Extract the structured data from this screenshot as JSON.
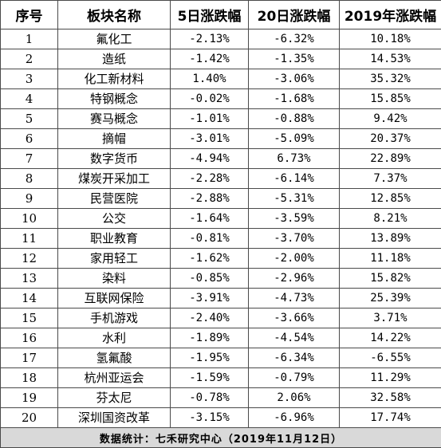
{
  "headers": [
    "序号",
    "板块名称",
    "5日涨跌幅",
    "20日涨跌幅",
    "2019年涨跌幅"
  ],
  "rows": [
    [
      "1",
      "氟化工",
      "-2.13%",
      "-6.32%",
      "10.18%"
    ],
    [
      "2",
      "造纸",
      "-1.42%",
      "-1.35%",
      "14.53%"
    ],
    [
      "3",
      "化工新材料",
      "1.40%",
      "-3.06%",
      "35.32%"
    ],
    [
      "4",
      "特钢概念",
      "-0.02%",
      "-1.68%",
      "15.85%"
    ],
    [
      "5",
      "赛马概念",
      "-1.01%",
      "-0.88%",
      "9.42%"
    ],
    [
      "6",
      "摘帽",
      "-3.01%",
      "-5.09%",
      "20.37%"
    ],
    [
      "7",
      "数字货币",
      "-4.94%",
      "6.73%",
      "22.89%"
    ],
    [
      "8",
      "煤炭开采加工",
      "-2.28%",
      "-6.14%",
      "7.37%"
    ],
    [
      "9",
      "民营医院",
      "-2.88%",
      "-5.31%",
      "12.85%"
    ],
    [
      "10",
      "公交",
      "-1.64%",
      "-3.59%",
      "8.21%"
    ],
    [
      "11",
      "职业教育",
      "-0.81%",
      "-3.70%",
      "13.89%"
    ],
    [
      "12",
      "家用轻工",
      "-1.62%",
      "-2.00%",
      "11.18%"
    ],
    [
      "13",
      "染料",
      "-0.85%",
      "-2.96%",
      "15.82%"
    ],
    [
      "14",
      "互联网保险",
      "-3.91%",
      "-4.73%",
      "25.39%"
    ],
    [
      "15",
      "手机游戏",
      "-2.40%",
      "-3.66%",
      "3.71%"
    ],
    [
      "16",
      "水利",
      "-1.89%",
      "-4.54%",
      "14.22%"
    ],
    [
      "17",
      "氢氟酸",
      "-1.95%",
      "-6.34%",
      "-6.55%"
    ],
    [
      "18",
      "杭州亚运会",
      "-1.59%",
      "-0.79%",
      "11.29%"
    ],
    [
      "19",
      "芬太尼",
      "-0.78%",
      "2.06%",
      "32.58%"
    ],
    [
      "20",
      "深圳国资改革",
      "-3.15%",
      "-6.96%",
      "17.74%"
    ]
  ],
  "footer": "数据统计：七禾研究中心（2019年11月12日）",
  "colors": {
    "border": "#4a4a4a",
    "footer_bg": "#d9d9d9",
    "text": "#000000"
  }
}
